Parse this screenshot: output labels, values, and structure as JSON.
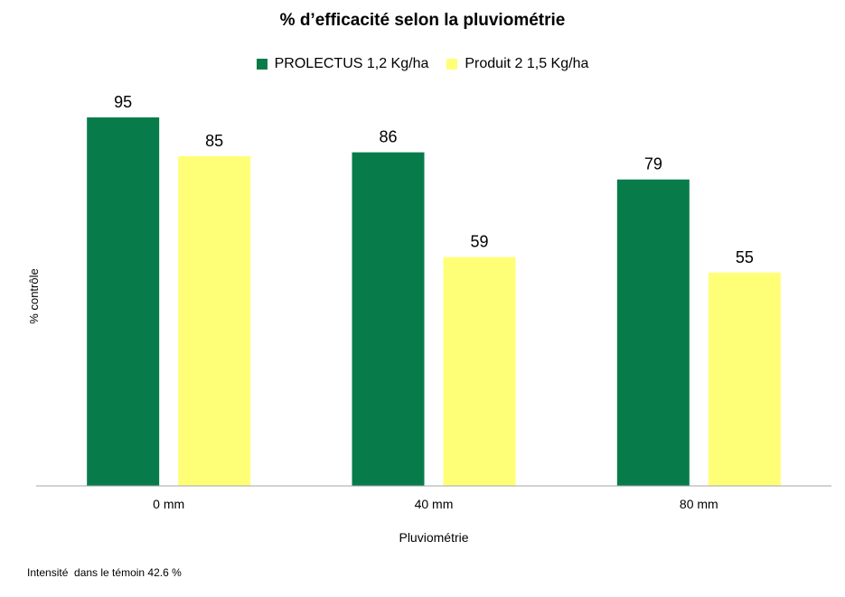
{
  "chart_data": {
    "type": "bar",
    "title": "% d’efficacité selon la pluviométrie",
    "xlabel": "Pluviométrie",
    "ylabel": "% contrôle",
    "categories": [
      "0 mm",
      "40 mm",
      "80 mm"
    ],
    "series": [
      {
        "name": "PROLECTUS 1,2 Kg/ha",
        "values": [
          95,
          86,
          79
        ],
        "color": "#077C4A"
      },
      {
        "name": "Produit 2 1,5 Kg/ha",
        "values": [
          85,
          59,
          55
        ],
        "color": "#FFFF77"
      }
    ],
    "ylim": [
      0,
      100
    ],
    "data_labels": true,
    "grid": false,
    "legend_position": "top-center"
  },
  "footnote": "Intensité  dans le témoin 42.6 %"
}
